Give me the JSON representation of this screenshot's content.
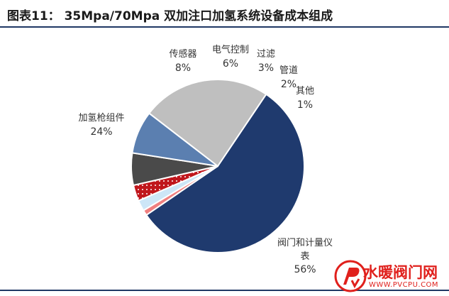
{
  "header": {
    "title": "图表11：  35Mpa/70Mpa 双加注口加氢系统设备成本组成"
  },
  "chart_data": {
    "type": "pie",
    "title": "",
    "series": [
      {
        "name": "阀门和计量仪表",
        "label_lines": [
          "阀门和计量仪",
          "表"
        ],
        "value": 56,
        "value_label": "56%",
        "color": "#1f3a6e",
        "pattern": "none"
      },
      {
        "name": "其他",
        "label_lines": [
          "其他"
        ],
        "value": 1,
        "value_label": "1%",
        "color": "#f08080",
        "pattern": "none"
      },
      {
        "name": "管道",
        "label_lines": [
          "管道"
        ],
        "value": 2,
        "value_label": "2%",
        "color": "#cde6f7",
        "pattern": "none"
      },
      {
        "name": "过滤",
        "label_lines": [
          "过滤"
        ],
        "value": 3,
        "value_label": "3%",
        "color": "#c0161c",
        "pattern": "dots"
      },
      {
        "name": "电气控制",
        "label_lines": [
          "电气控制"
        ],
        "value": 6,
        "value_label": "6%",
        "color": "#4a4a4a",
        "pattern": "none"
      },
      {
        "name": "传感器",
        "label_lines": [
          "传感器"
        ],
        "value": 8,
        "value_label": "8%",
        "color": "#5b7fb0",
        "pattern": "none"
      },
      {
        "name": "加氢枪组件",
        "label_lines": [
          "加氢枪组件"
        ],
        "value": 24,
        "value_label": "24%",
        "color": "#bfbfbf",
        "pattern": "none"
      }
    ]
  },
  "watermark": {
    "name": "水暖阀门网",
    "url": "WWW.PVCPU.COM"
  }
}
